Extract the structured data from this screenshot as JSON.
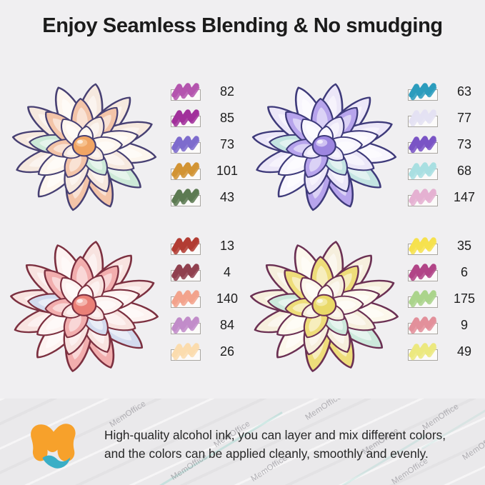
{
  "title": "Enjoy Seamless Blending & No smudging",
  "footer": {
    "line1": "High-quality alcohol ink, you can layer and mix different colors,",
    "line2": "and the colors can be applied cleanly, smoothly and evenly."
  },
  "brand": {
    "watermark": "MemOffice",
    "logo_orange": "#f7a12b",
    "logo_teal": "#3aaec6"
  },
  "colors": {
    "background": "#f0eff1",
    "band_background": "#eae9eb",
    "title_text": "#1b1b1b",
    "number_text": "#1e1e1e",
    "swatch_box_border": "#a9a6a1",
    "swatch_box_fill": "#fcfbfa"
  },
  "quadrants": [
    {
      "id": "top-left",
      "flower_palette": {
        "outline": "#474073",
        "petal": "#f6e9df",
        "light": "#fdf6ee",
        "blush": "#f3c4a8",
        "shade": "#b3a6d8",
        "accent": "#cde9d8",
        "center": "#f0a564",
        "centerBlush": "#f6c18e"
      },
      "swatches": [
        {
          "num": "82",
          "color": "#b455ae"
        },
        {
          "num": "85",
          "color": "#a1309b"
        },
        {
          "num": "73",
          "color": "#7d6bcd"
        },
        {
          "num": "101",
          "color": "#d29434"
        },
        {
          "num": "43",
          "color": "#5c7a52"
        }
      ]
    },
    {
      "id": "top-right",
      "flower_palette": {
        "outline": "#3e3a7a",
        "petal": "#ece7f8",
        "light": "#f8f6fd",
        "blush": "#b7a4ec",
        "shade": "#8d7fd2",
        "accent": "#c4e4e2",
        "center": "#9d86e0",
        "centerBlush": "#cfc2f2"
      },
      "swatches": [
        {
          "num": "63",
          "color": "#2b9cbd"
        },
        {
          "num": "77",
          "color": "#e4e1f3"
        },
        {
          "num": "73",
          "color": "#7a54c5"
        },
        {
          "num": "68",
          "color": "#a9dfe1"
        },
        {
          "num": "147",
          "color": "#e5b1d2"
        }
      ]
    },
    {
      "id": "bottom-left",
      "flower_palette": {
        "outline": "#7c3040",
        "petal": "#f8e3e0",
        "light": "#fdf3f1",
        "blush": "#f2aeae",
        "shade": "#dd8893",
        "accent": "#d3dbee",
        "center": "#ea8077",
        "centerBlush": "#f4b5ad"
      },
      "swatches": [
        {
          "num": "13",
          "color": "#b23c33"
        },
        {
          "num": "4",
          "color": "#90404f"
        },
        {
          "num": "140",
          "color": "#f2a38c"
        },
        {
          "num": "84",
          "color": "#c18cc9"
        },
        {
          "num": "26",
          "color": "#fbdcae"
        }
      ]
    },
    {
      "id": "bottom-right",
      "flower_palette": {
        "outline": "#6b3053",
        "petal": "#f6efdd",
        "light": "#fcf8ec",
        "blush": "#eedd7a",
        "shade": "#b98aa8",
        "accent": "#cde9dc",
        "center": "#e9d968",
        "centerBlush": "#f2e9a0"
      },
      "swatches": [
        {
          "num": "35",
          "color": "#f6e14e"
        },
        {
          "num": "6",
          "color": "#b14487"
        },
        {
          "num": "175",
          "color": "#abd48c"
        },
        {
          "num": "9",
          "color": "#e2909b"
        },
        {
          "num": "49",
          "color": "#ece87f"
        }
      ]
    }
  ]
}
